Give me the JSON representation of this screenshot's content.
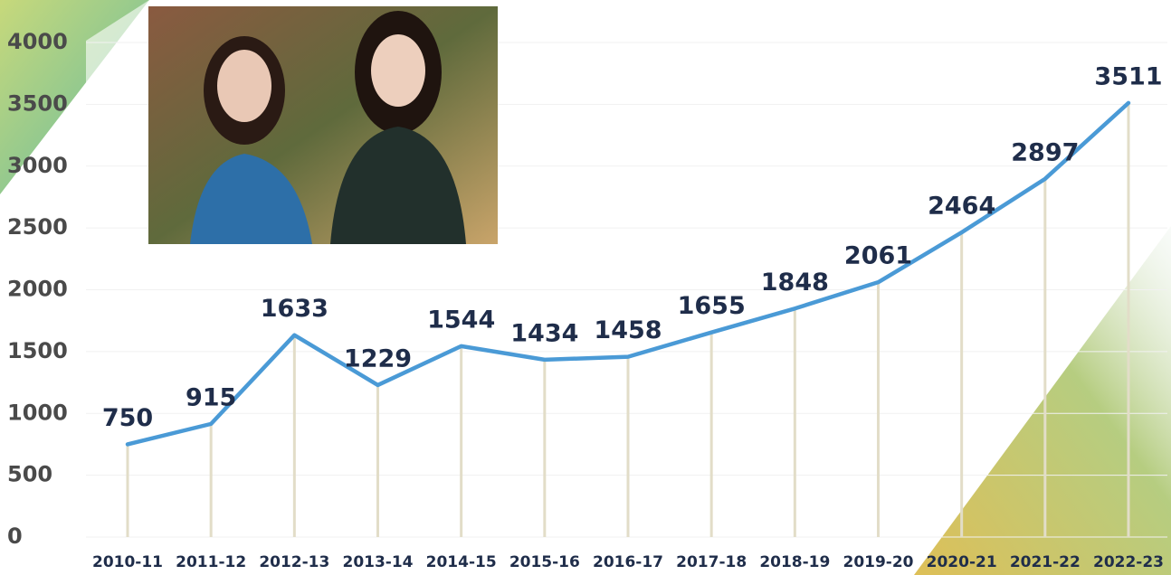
{
  "chart_data": {
    "type": "line",
    "categories": [
      "2010-11",
      "2011-12",
      "2012-13",
      "2013-14",
      "2014-15",
      "2015-16",
      "2016-17",
      "2017-18",
      "2018-19",
      "2019-20",
      "2020-21",
      "2021-22",
      "2022-23"
    ],
    "series": [
      {
        "color": "#4a9ad6",
        "values": [
          750,
          915,
          1633,
          1229,
          1544,
          1434,
          1458,
          1655,
          1848,
          2061,
          2464,
          2897,
          3511
        ]
      }
    ],
    "ylim": [
      0,
      4000
    ],
    "yticks": [
      0,
      500,
      1000,
      1500,
      2000,
      2500,
      3000,
      3500,
      4000
    ],
    "grid": true
  }
}
